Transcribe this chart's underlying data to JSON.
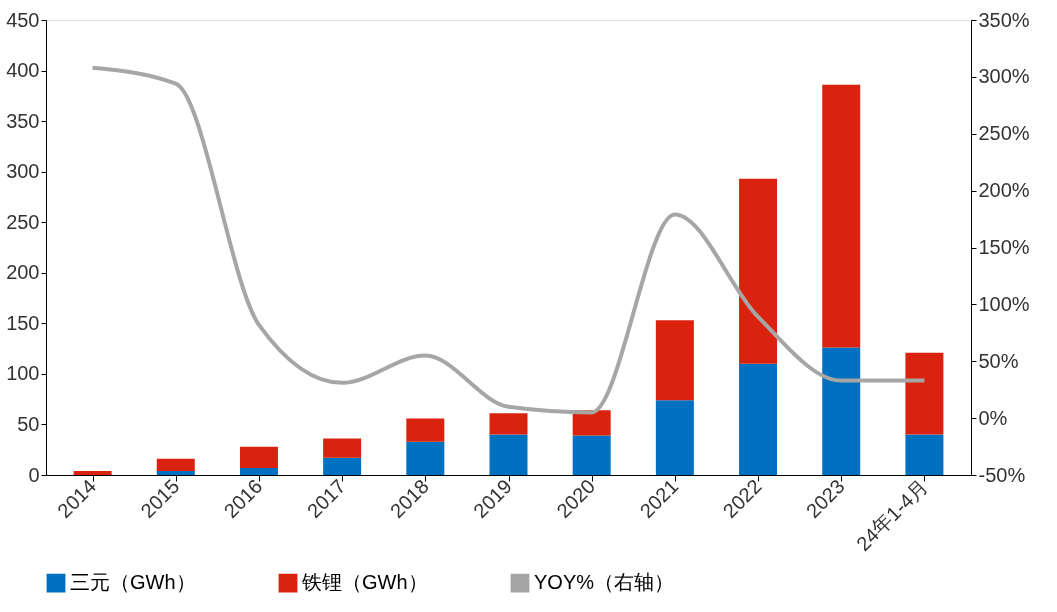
{
  "chart_data": {
    "type": "bar",
    "stacked": true,
    "legend": "bottom",
    "grid": false,
    "categories": [
      "2014",
      "2015",
      "2016",
      "2017",
      "2018",
      "2019",
      "2020",
      "2021",
      "2022",
      "2023",
      "24年1-4月"
    ],
    "series": [
      {
        "name": "三元（GWh）",
        "color": "#0070c0",
        "values": [
          null,
          4,
          7,
          17,
          33,
          40,
          39,
          74,
          110,
          126,
          40
        ]
      },
      {
        "name": "铁锂（GWh）",
        "color": "#d9230f",
        "values": [
          4,
          12,
          21,
          19,
          23,
          21,
          25,
          79,
          183,
          260,
          81
        ]
      },
      {
        "name": "YOY%（右轴）",
        "type": "line",
        "axis": "y2",
        "color": "#a6a6a6",
        "values": [
          308,
          294,
          82,
          31,
          55,
          10,
          5,
          179,
          89,
          33,
          33
        ]
      }
    ],
    "ylim": [
      0,
      450
    ],
    "yticks": [
      0,
      50,
      100,
      150,
      200,
      250,
      300,
      350,
      400,
      450
    ],
    "y2lim": [
      -50,
      350
    ],
    "y2ticks": [
      {
        "value": -50,
        "label": "-50%"
      },
      {
        "value": 0,
        "label": "0%"
      },
      {
        "value": 50,
        "label": "50%"
      },
      {
        "value": 100,
        "label": "100%"
      },
      {
        "value": 150,
        "label": "150%"
      },
      {
        "value": 200,
        "label": "200%"
      },
      {
        "value": 250,
        "label": "250%"
      },
      {
        "value": 300,
        "label": "300%"
      },
      {
        "value": 350,
        "label": "350%"
      }
    ]
  }
}
